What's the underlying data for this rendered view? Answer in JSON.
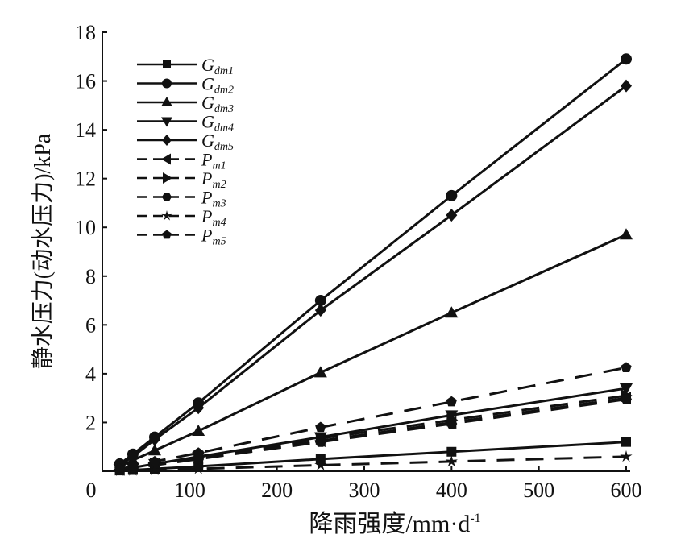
{
  "chart_data": {
    "type": "line",
    "title": "",
    "xlabel": "降雨强度/mm·d",
    "xlabel_sup": "-1",
    "ylabel": "静水压力(动水压力)/kPa",
    "xlim": [
      0,
      600
    ],
    "ylim": [
      0,
      18
    ],
    "xticks": [
      "0",
      "100",
      "200",
      "300",
      "400",
      "500",
      "600"
    ],
    "yticks": [
      "0",
      "2",
      "4",
      "6",
      "8",
      "10",
      "12",
      "14",
      "16",
      "18"
    ],
    "x": [
      20,
      35,
      60,
      110,
      250,
      400,
      600
    ],
    "legend_position": "top-left",
    "series": [
      {
        "name": "G",
        "sub": "dm1",
        "dash": false,
        "marker": "square",
        "values": [
          0.03,
          0.05,
          0.1,
          0.2,
          0.5,
          0.8,
          1.2
        ]
      },
      {
        "name": "G",
        "sub": "dm2",
        "dash": false,
        "marker": "circle",
        "values": [
          0.3,
          0.7,
          1.4,
          2.8,
          7.0,
          11.3,
          16.9
        ]
      },
      {
        "name": "G",
        "sub": "dm3",
        "dash": false,
        "marker": "triangle-up",
        "values": [
          0.2,
          0.45,
          0.85,
          1.65,
          4.05,
          6.5,
          9.7
        ]
      },
      {
        "name": "G",
        "sub": "dm4",
        "dash": false,
        "marker": "triangle-down",
        "values": [
          0.1,
          0.15,
          0.3,
          0.6,
          1.4,
          2.3,
          3.4
        ]
      },
      {
        "name": "G",
        "sub": "dm5",
        "dash": false,
        "marker": "diamond",
        "values": [
          0.25,
          0.6,
          1.3,
          2.6,
          6.6,
          10.5,
          15.8
        ]
      },
      {
        "name": "P",
        "sub": "m1",
        "dash": true,
        "marker": "triangle-left",
        "values": [
          0.08,
          0.14,
          0.28,
          0.55,
          1.25,
          2.0,
          3.0
        ]
      },
      {
        "name": "P",
        "sub": "m2",
        "dash": true,
        "marker": "triangle-right",
        "values": [
          0.09,
          0.15,
          0.3,
          0.58,
          1.35,
          2.1,
          3.1
        ]
      },
      {
        "name": "P",
        "sub": "m3",
        "dash": true,
        "marker": "hexagon",
        "values": [
          0.06,
          0.12,
          0.25,
          0.5,
          1.2,
          1.95,
          2.95
        ]
      },
      {
        "name": "P",
        "sub": "m4",
        "dash": true,
        "marker": "star",
        "values": [
          0.02,
          0.03,
          0.05,
          0.1,
          0.25,
          0.4,
          0.6
        ]
      },
      {
        "name": "P",
        "sub": "m5",
        "dash": true,
        "marker": "pentagon",
        "values": [
          0.1,
          0.2,
          0.4,
          0.75,
          1.8,
          2.85,
          4.25
        ]
      }
    ]
  }
}
